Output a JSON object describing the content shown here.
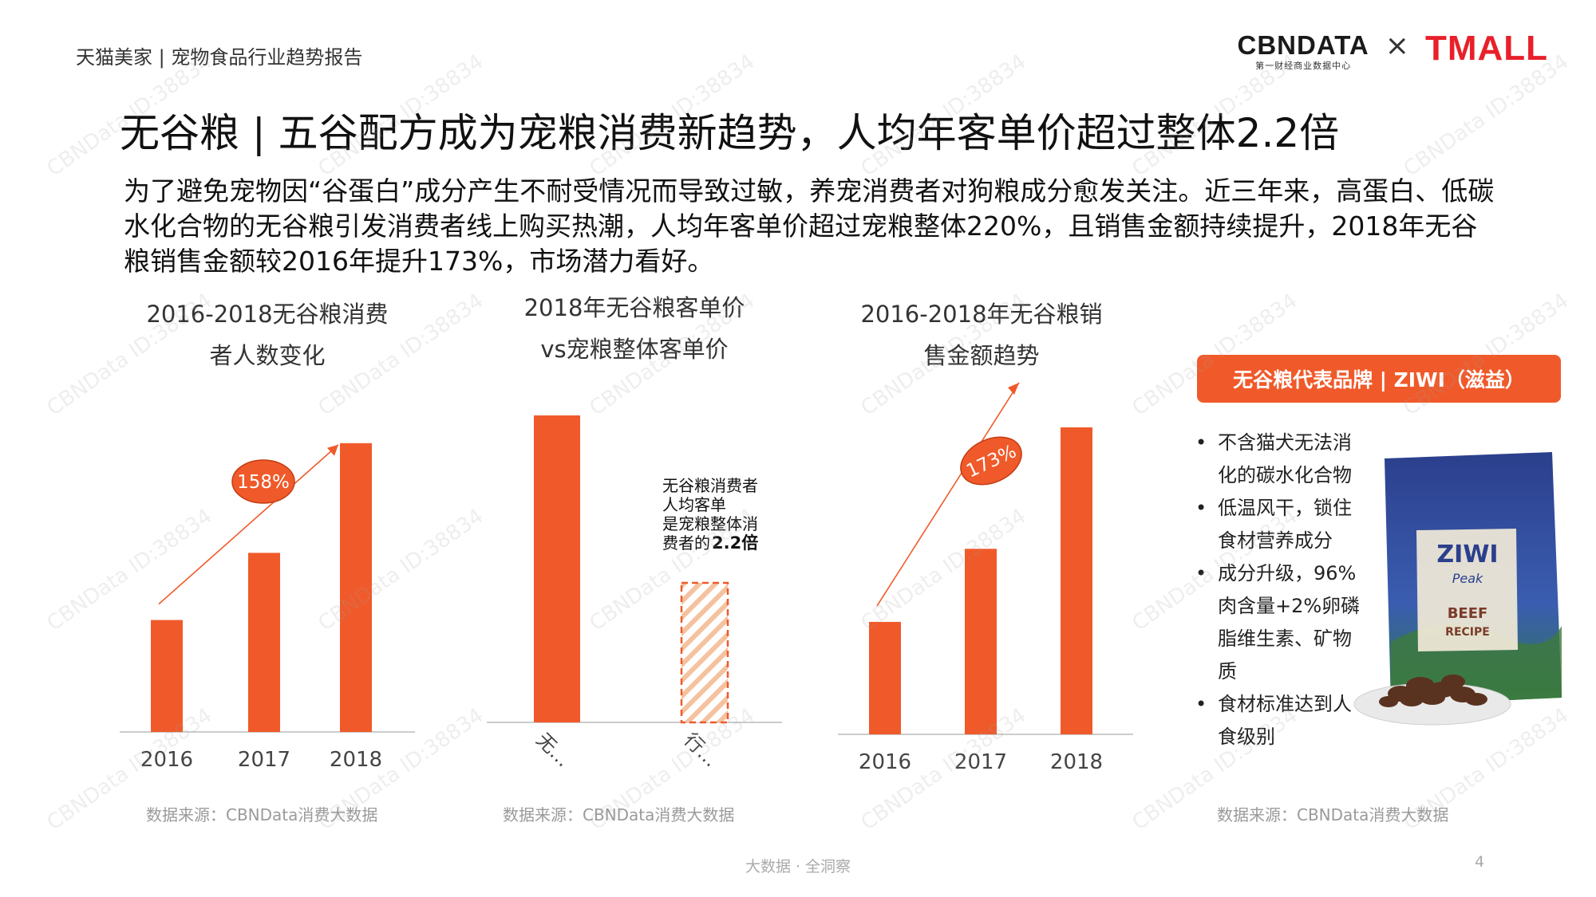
{
  "header": {
    "report_title": "天猫美家 | 宠物食品行业趋势报告",
    "logo_cbndata": "CBNDATA",
    "logo_cbndata_sub": "第一财经商业数据中心",
    "logo_times": "×",
    "logo_tmall": "TMALL"
  },
  "page_title": "无谷粮 | 五谷配方成为宠粮消费新趋势，人均年客单价超过整体2.2倍",
  "intro": "为了避免宠物因“谷蛋白”成分产生不耐受情况而导致过敏，养宠消费者对狗粮成分愈发关注。近三年来，高蛋白、低碳水化合物的无谷粮引发消费者线上购买热潮，人均年客单价超过宠粮整体220%，且销售金额持续提升，2018年无谷粮销售金额较2016年提升173%，市场潜力看好。",
  "chart_data": [
    {
      "type": "bar",
      "title_lines": [
        "2016-2018无谷粮消费",
        "者人数变化"
      ],
      "categories": [
        "2016",
        "2017",
        "2018"
      ],
      "values": [
        1.0,
        1.6,
        2.58
      ],
      "ylim": [
        0,
        2.6
      ],
      "annotation": "158%",
      "source": "数据来源：CBNData消费大数据",
      "color": "#f05a2a"
    },
    {
      "type": "bar",
      "title_lines": [
        "2018年无谷粮客单价",
        "vs宠粮整体客单价"
      ],
      "categories": [
        "无…",
        "行…"
      ],
      "values": [
        2.2,
        1.0
      ],
      "ylim": [
        0,
        2.2
      ],
      "annotation_lines": [
        "无谷粮消费者",
        "人均客单",
        "是宠粮整体消",
        "费者的"
      ],
      "annotation_bold": "2.2倍",
      "source": "数据来源：CBNData消费大数据",
      "color": "#f05a2a",
      "hatch_color": "#f5c29f"
    },
    {
      "type": "bar",
      "title_lines": [
        "2016-2018年无谷粮销",
        "售金额趋势"
      ],
      "categories": [
        "2016",
        "2017",
        "2018"
      ],
      "values": [
        1.0,
        1.65,
        2.73
      ],
      "ylim": [
        0,
        2.73
      ],
      "annotation": "173%",
      "source": "",
      "color": "#f05a2a"
    }
  ],
  "brand": {
    "title": "无谷粮代表品牌 | ZIWI（滋益）",
    "features": [
      "不含猫犬无法消化的碳水化合物",
      "低温风干，锁住食材营养成分",
      "成分升级，96%肉含量+2%卵磷脂维生素、矿物质",
      "食材标准达到人食级别"
    ],
    "product_label_1": "ZIWI",
    "product_label_2": "Peak",
    "product_label_3": "BEEF",
    "product_label_4": "RECIPE",
    "source": "数据来源：CBNData消费大数据"
  },
  "footer": {
    "tagline": "大数据 · 全洞察",
    "page_number": "4"
  },
  "watermark": "CBNData ID:38834",
  "colors": {
    "accent": "#f05a2a",
    "tmall": "#e8202a"
  }
}
